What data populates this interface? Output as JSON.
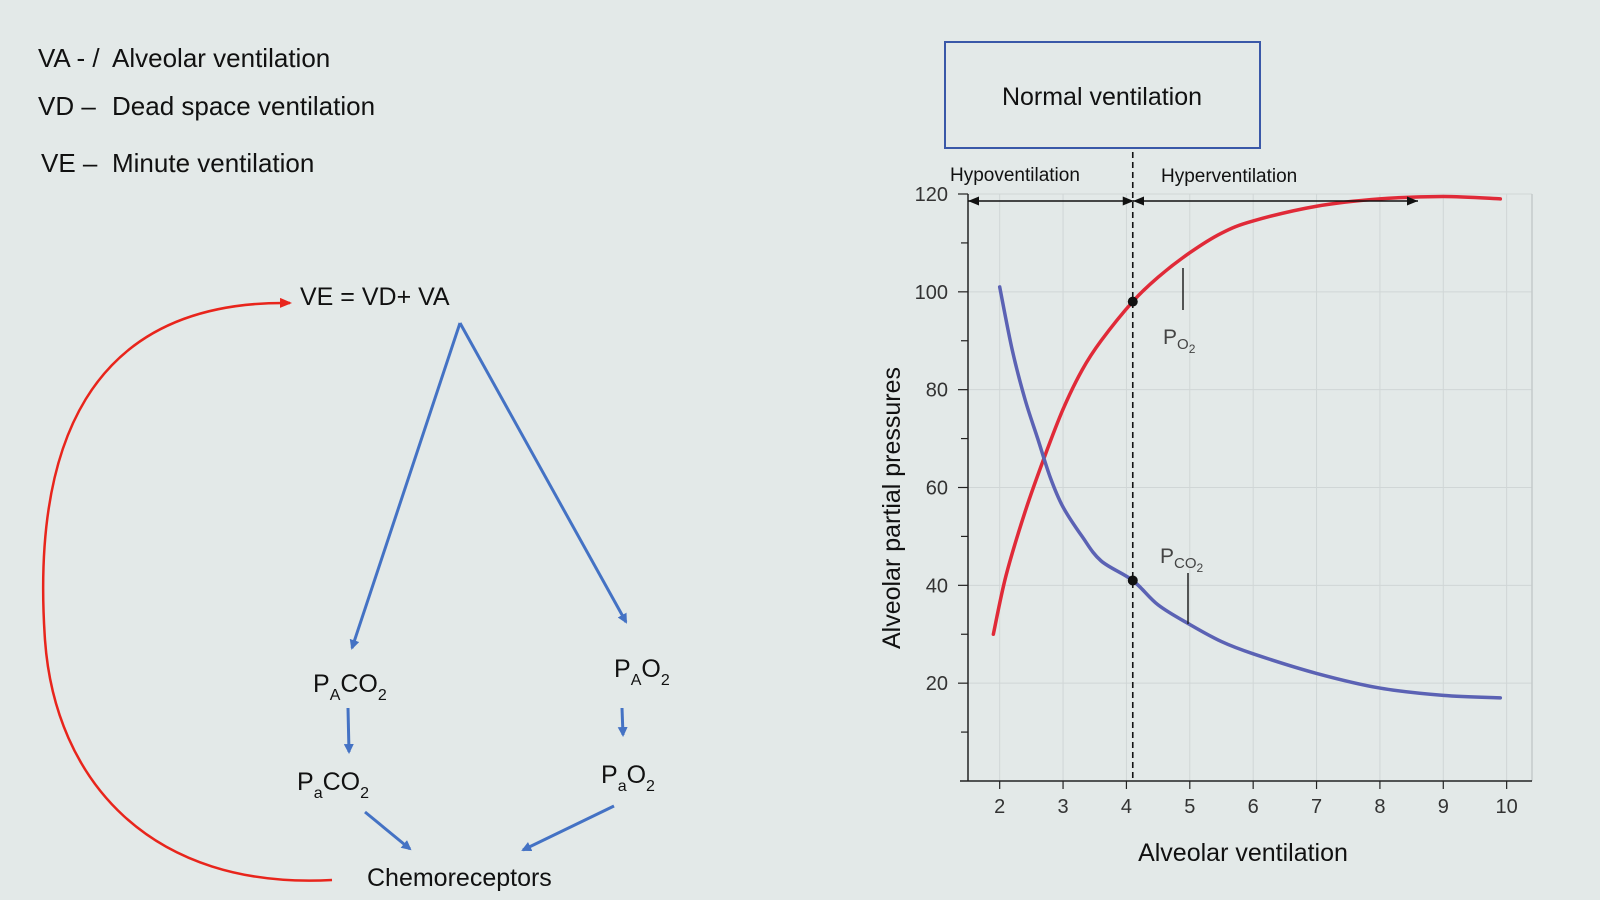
{
  "definitions": [
    {
      "abbr": "VA - /",
      "meaning": "Alveolar ventilation"
    },
    {
      "abbr": "VD –",
      "meaning": "Dead space ventilation"
    },
    {
      "abbr": "VE –",
      "meaning": "Minute ventilation"
    }
  ],
  "diagram": {
    "equation": "VE = VD+ VA",
    "pa_co2": {
      "base": "P",
      "sub": "A",
      "main": "CO",
      "sub2": "2"
    },
    "pa_o2": {
      "base": "P",
      "sub": "A",
      "main": "O",
      "sub2": "2"
    },
    "art_co2": {
      "base": "P",
      "sub": "a",
      "main": "CO",
      "sub2": "2"
    },
    "art_o2": {
      "base": "P",
      "sub": "a",
      "main": "O",
      "sub2": "2"
    },
    "chemoreceptors": "Chemoreceptors"
  },
  "colors": {
    "arrow_blue": "#4472c4",
    "feedback_red": "#e8251c",
    "po2_red": "#e02a38",
    "pco2_blue": "#5b62b4",
    "box_border": "#3a58a8"
  },
  "chart_data": {
    "type": "line",
    "title": "Normal ventilation",
    "xlabel": "Alveolar ventilation",
    "ylabel": "Alveolar partial pressures",
    "xlim": [
      1.5,
      10.4
    ],
    "ylim": [
      0,
      120
    ],
    "xticks": [
      2,
      3,
      4,
      5,
      6,
      7,
      8,
      9,
      10
    ],
    "yticks": [
      20,
      40,
      60,
      80,
      100,
      120
    ],
    "normal_x": 4.1,
    "hypo_label": "Hypoventilation",
    "hyper_label": "Hyperventilation",
    "series": [
      {
        "name": "PO2",
        "label_base": "P",
        "label_sub": "O",
        "label_sub2": "2",
        "x": [
          1.9,
          2.1,
          2.4,
          2.7,
          3.0,
          3.3,
          3.6,
          4.1,
          4.5,
          5.0,
          5.5,
          6.0,
          7.0,
          8.0,
          9.0,
          9.9
        ],
        "y": [
          30,
          42,
          55,
          66,
          76,
          84,
          90,
          98,
          103,
          108,
          112,
          114.5,
          117.5,
          119,
          119.5,
          119
        ]
      },
      {
        "name": "PCO2",
        "label_base": "P",
        "label_sub": "CO",
        "label_sub2": "2",
        "x": [
          2.0,
          2.2,
          2.4,
          2.6,
          2.8,
          3.0,
          3.3,
          3.6,
          4.1,
          4.5,
          5.0,
          5.5,
          6.0,
          7.0,
          8.0,
          9.0,
          9.9
        ],
        "y": [
          101,
          88,
          78,
          70,
          62,
          56,
          50,
          45,
          41,
          36,
          32,
          28.5,
          26,
          22,
          19,
          17.5,
          17
        ]
      }
    ],
    "markers": [
      {
        "x": 4.1,
        "y": 98
      },
      {
        "x": 4.1,
        "y": 41
      }
    ]
  }
}
